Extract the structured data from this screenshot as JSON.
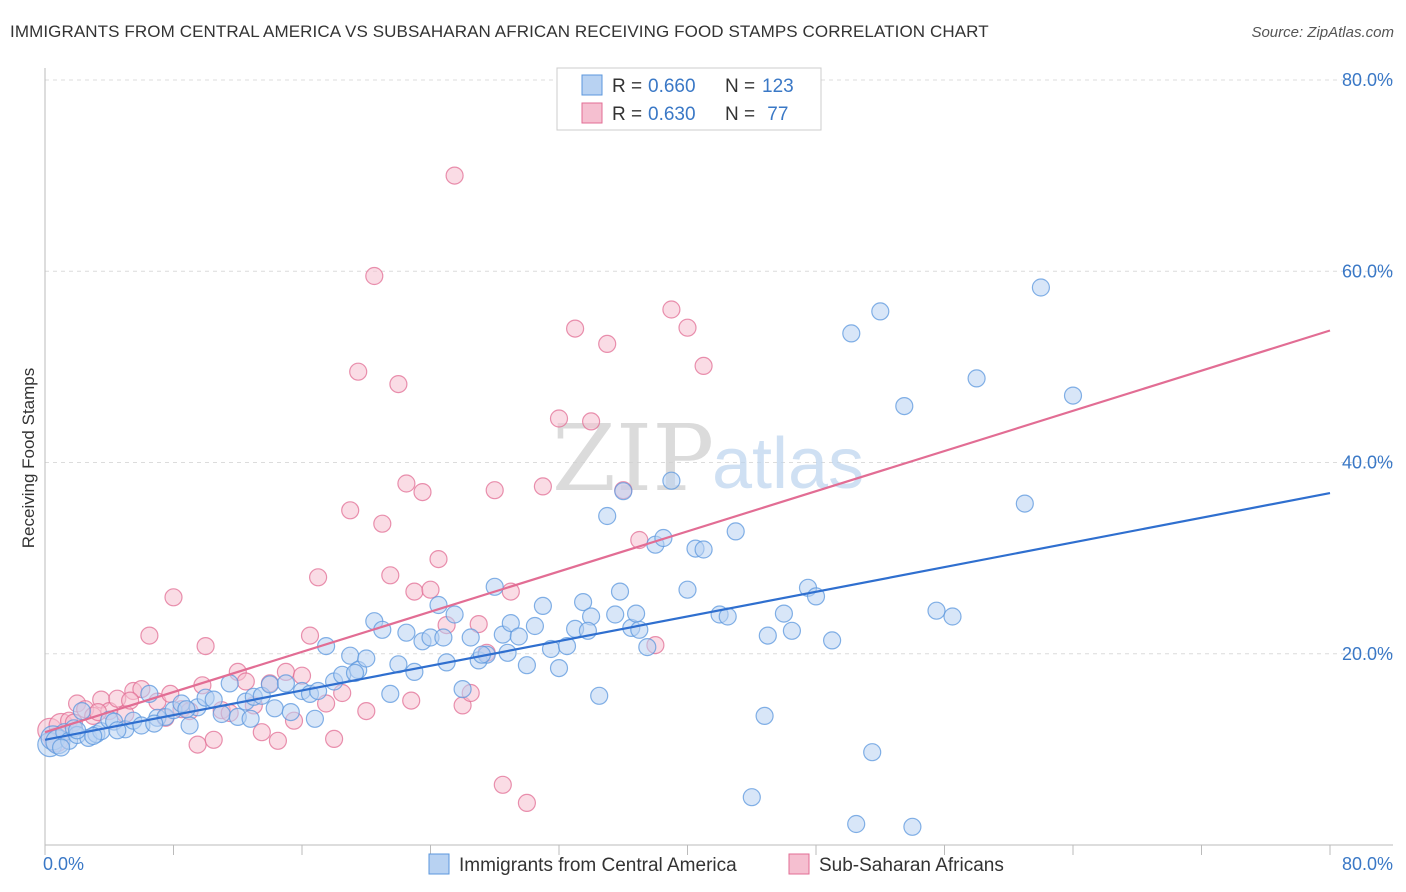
{
  "title": "IMMIGRANTS FROM CENTRAL AMERICA VS SUBSAHARAN AFRICAN RECEIVING FOOD STAMPS CORRELATION CHART",
  "source": "Source: ZipAtlas.com",
  "watermark": {
    "zip": "ZIP",
    "atlas": "atlas"
  },
  "colors": {
    "blue": "#5b97dd",
    "blue_fill": "#b8d2f2",
    "pink": "#e26d94",
    "pink_fill": "#f5bfd0",
    "tick_blue": "#3a78c6",
    "grid": "#dcdcdc"
  },
  "legend_top": {
    "rows": [
      {
        "r_label": "R = ",
        "r_value": "0.660",
        "n_label": "N = ",
        "n_value": "123"
      },
      {
        "r_label": "R = ",
        "r_value": "0.630",
        "n_label": "N = ",
        "n_value": " 77"
      }
    ]
  },
  "legend_bottom": [
    "Immigrants from Central America",
    "Sub-Saharan Africans"
  ],
  "chart_data": {
    "type": "scatter",
    "title": "IMMIGRANTS FROM CENTRAL AMERICA VS SUBSAHARAN AFRICAN RECEIVING FOOD STAMPS CORRELATION CHART",
    "xlabel": "",
    "ylabel": "Receiving Food Stamps",
    "xlim": [
      0,
      80
    ],
    "ylim": [
      0,
      80
    ],
    "x_tick_labels": [
      "0.0%",
      "80.0%"
    ],
    "y_tick_labels": [
      "20.0%",
      "40.0%",
      "60.0%",
      "80.0%"
    ],
    "y_ticks": [
      20,
      40,
      60,
      80
    ],
    "grid": true,
    "series": [
      {
        "name": "Immigrants from Central America",
        "R": 0.66,
        "N": 123,
        "trend": [
          [
            0,
            11.0
          ],
          [
            80,
            36.8
          ]
        ],
        "points": [
          [
            0.3,
            10.5
          ],
          [
            0.5,
            11.2
          ],
          [
            0.8,
            10.8
          ],
          [
            1.2,
            11.8
          ],
          [
            1.5,
            10.9
          ],
          [
            1.8,
            12.2
          ],
          [
            2.0,
            11.5
          ],
          [
            2.3,
            14.0
          ],
          [
            2.7,
            11.2
          ],
          [
            3.2,
            11.6
          ],
          [
            3.5,
            11.9
          ],
          [
            4.0,
            13.1
          ],
          [
            4.3,
            12.9
          ],
          [
            5.0,
            12.1
          ],
          [
            5.5,
            13.0
          ],
          [
            6.0,
            12.5
          ],
          [
            6.5,
            15.8
          ],
          [
            7.0,
            13.3
          ],
          [
            7.5,
            13.4
          ],
          [
            8.0,
            14.1
          ],
          [
            8.5,
            14.8
          ],
          [
            9.0,
            12.5
          ],
          [
            9.5,
            14.4
          ],
          [
            10.0,
            15.4
          ],
          [
            10.5,
            15.2
          ],
          [
            11.0,
            13.7
          ],
          [
            11.5,
            16.9
          ],
          [
            12.0,
            13.4
          ],
          [
            12.5,
            15.0
          ],
          [
            13.0,
            15.5
          ],
          [
            13.5,
            15.6
          ],
          [
            14.0,
            16.8
          ],
          [
            14.3,
            14.3
          ],
          [
            15.0,
            16.9
          ],
          [
            15.3,
            13.9
          ],
          [
            16.0,
            16.1
          ],
          [
            16.5,
            15.8
          ],
          [
            17.0,
            16.1
          ],
          [
            17.5,
            20.8
          ],
          [
            18.0,
            17.1
          ],
          [
            18.5,
            17.8
          ],
          [
            19.0,
            19.8
          ],
          [
            19.5,
            18.3
          ],
          [
            20.0,
            19.5
          ],
          [
            20.5,
            23.4
          ],
          [
            21.0,
            22.5
          ],
          [
            21.5,
            15.8
          ],
          [
            22.0,
            18.9
          ],
          [
            22.5,
            22.2
          ],
          [
            23.0,
            18.1
          ],
          [
            23.5,
            21.3
          ],
          [
            24.0,
            21.7
          ],
          [
            24.5,
            25.1
          ],
          [
            25.0,
            19.1
          ],
          [
            25.5,
            24.1
          ],
          [
            26.0,
            16.3
          ],
          [
            26.5,
            21.7
          ],
          [
            27.0,
            19.3
          ],
          [
            27.5,
            19.9
          ],
          [
            28.0,
            27.0
          ],
          [
            28.5,
            22.0
          ],
          [
            29.0,
            23.2
          ],
          [
            29.5,
            21.8
          ],
          [
            30.0,
            18.8
          ],
          [
            30.5,
            22.9
          ],
          [
            31.0,
            25.0
          ],
          [
            31.5,
            20.5
          ],
          [
            32.0,
            18.5
          ],
          [
            32.5,
            20.8
          ],
          [
            33.0,
            22.6
          ],
          [
            33.5,
            25.4
          ],
          [
            34.0,
            23.9
          ],
          [
            34.5,
            15.6
          ],
          [
            35.0,
            34.4
          ],
          [
            35.5,
            24.1
          ],
          [
            36.0,
            37.0
          ],
          [
            36.5,
            22.7
          ],
          [
            37.0,
            22.5
          ],
          [
            37.5,
            20.7
          ],
          [
            38.0,
            31.4
          ],
          [
            38.5,
            32.1
          ],
          [
            39.0,
            38.1
          ],
          [
            40.0,
            26.7
          ],
          [
            40.5,
            31.0
          ],
          [
            41.0,
            30.9
          ],
          [
            42.0,
            24.1
          ],
          [
            43.0,
            32.8
          ],
          [
            44.0,
            5.0
          ],
          [
            45.0,
            21.9
          ],
          [
            46.0,
            24.2
          ],
          [
            46.5,
            22.4
          ],
          [
            47.5,
            26.9
          ],
          [
            48.0,
            26.0
          ],
          [
            49.0,
            21.4
          ],
          [
            50.5,
            2.2
          ],
          [
            51.5,
            9.7
          ],
          [
            52.0,
            55.8
          ],
          [
            53.5,
            45.9
          ],
          [
            54.0,
            1.9
          ],
          [
            55.5,
            24.5
          ],
          [
            56.5,
            23.9
          ],
          [
            58.0,
            48.8
          ],
          [
            61.0,
            35.7
          ],
          [
            62.0,
            58.3
          ],
          [
            64.0,
            47.0
          ],
          [
            1.0,
            10.2
          ],
          [
            2.0,
            12.0
          ],
          [
            3.0,
            11.4
          ],
          [
            4.5,
            12.0
          ],
          [
            6.8,
            12.7
          ],
          [
            8.8,
            14.2
          ],
          [
            12.8,
            13.2
          ],
          [
            16.8,
            13.2
          ],
          [
            19.3,
            18.0
          ],
          [
            24.8,
            21.7
          ],
          [
            28.8,
            20.1
          ],
          [
            35.8,
            26.5
          ],
          [
            42.5,
            23.9
          ],
          [
            44.8,
            13.5
          ],
          [
            50.2,
            53.5
          ],
          [
            36.8,
            24.2
          ],
          [
            33.8,
            22.4
          ],
          [
            27.2,
            19.9
          ]
        ]
      },
      {
        "name": "Sub-Saharan Africans",
        "R": 0.63,
        "N": 77,
        "trend": [
          [
            0,
            11.8
          ],
          [
            80,
            53.8
          ]
        ],
        "points": [
          [
            0.3,
            12.0
          ],
          [
            0.7,
            11.0
          ],
          [
            1.0,
            12.5
          ],
          [
            1.5,
            13.0
          ],
          [
            2.0,
            14.8
          ],
          [
            2.5,
            14.2
          ],
          [
            3.0,
            13.5
          ],
          [
            3.5,
            15.2
          ],
          [
            4.0,
            14.0
          ],
          [
            4.5,
            15.3
          ],
          [
            5.0,
            13.7
          ],
          [
            5.5,
            16.1
          ],
          [
            6.0,
            16.3
          ],
          [
            6.5,
            21.9
          ],
          [
            7.0,
            15.0
          ],
          [
            7.5,
            13.3
          ],
          [
            8.0,
            25.9
          ],
          [
            8.5,
            14.2
          ],
          [
            9.0,
            14.0
          ],
          [
            9.5,
            10.5
          ],
          [
            10.0,
            20.8
          ],
          [
            10.5,
            11.0
          ],
          [
            11.0,
            14.1
          ],
          [
            11.5,
            13.8
          ],
          [
            12.0,
            18.1
          ],
          [
            12.5,
            17.1
          ],
          [
            13.0,
            14.6
          ],
          [
            13.5,
            11.8
          ],
          [
            14.0,
            16.9
          ],
          [
            14.5,
            10.9
          ],
          [
            15.0,
            18.1
          ],
          [
            15.5,
            13.0
          ],
          [
            16.0,
            17.7
          ],
          [
            16.5,
            21.9
          ],
          [
            17.0,
            28.0
          ],
          [
            17.5,
            14.8
          ],
          [
            18.0,
            11.1
          ],
          [
            18.5,
            15.9
          ],
          [
            19.0,
            35.0
          ],
          [
            19.5,
            49.5
          ],
          [
            20.0,
            14.0
          ],
          [
            20.5,
            59.5
          ],
          [
            21.0,
            33.6
          ],
          [
            21.5,
            28.2
          ],
          [
            22.0,
            48.2
          ],
          [
            22.5,
            37.8
          ],
          [
            23.0,
            26.5
          ],
          [
            23.5,
            36.9
          ],
          [
            24.0,
            26.7
          ],
          [
            24.5,
            29.9
          ],
          [
            25.0,
            23.0
          ],
          [
            25.5,
            70.0
          ],
          [
            26.0,
            14.6
          ],
          [
            26.5,
            15.9
          ],
          [
            27.0,
            23.1
          ],
          [
            27.5,
            20.1
          ],
          [
            28.0,
            37.1
          ],
          [
            28.5,
            6.3
          ],
          [
            29.0,
            26.5
          ],
          [
            30.0,
            4.4
          ],
          [
            31.0,
            37.5
          ],
          [
            32.0,
            44.6
          ],
          [
            33.0,
            54.0
          ],
          [
            34.0,
            44.3
          ],
          [
            35.0,
            52.4
          ],
          [
            36.0,
            37.1
          ],
          [
            37.0,
            31.9
          ],
          [
            38.0,
            20.9
          ],
          [
            39.0,
            56.0
          ],
          [
            40.0,
            54.1
          ],
          [
            41.0,
            50.1
          ],
          [
            1.8,
            12.8
          ],
          [
            3.3,
            13.9
          ],
          [
            5.3,
            15.1
          ],
          [
            7.8,
            15.8
          ],
          [
            9.8,
            16.7
          ],
          [
            22.8,
            15.1
          ]
        ]
      }
    ]
  }
}
